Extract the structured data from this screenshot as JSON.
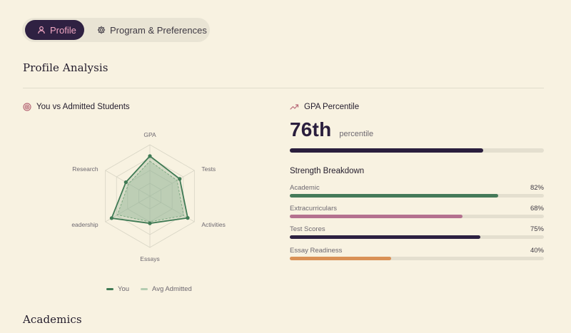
{
  "tabs": {
    "profile": "Profile",
    "program": "Program & Preferences"
  },
  "section_title": "Profile Analysis",
  "radar_card": {
    "title": "You vs Admitted Students",
    "axes": [
      "GPA",
      "Tests",
      "Activities",
      "Essays",
      "Leadership",
      "Research"
    ],
    "you": [
      0.78,
      0.67,
      0.85,
      0.53,
      0.86,
      0.54
    ],
    "avg_admitted": [
      0.68,
      0.61,
      0.76,
      0.5,
      0.73,
      0.48
    ],
    "legend": {
      "you": "You",
      "avg": "Avg Admitted"
    },
    "colors": {
      "you": "#3f7a54",
      "avg": "#b4cdb1"
    }
  },
  "gpa_card": {
    "title": "GPA Percentile",
    "value": "76th",
    "unit": "percentile",
    "progress": 0.76
  },
  "strength": {
    "title": "Strength Breakdown",
    "rows": [
      {
        "label": "Academic",
        "value": "82%",
        "pct": 0.82,
        "color": "#457a59"
      },
      {
        "label": "Extracurriculars",
        "value": "68%",
        "pct": 0.68,
        "color": "#b4718f"
      },
      {
        "label": "Test Scores",
        "value": "75%",
        "pct": 0.75,
        "color": "#2c2040"
      },
      {
        "label": "Essay Readiness",
        "value": "40%",
        "pct": 0.4,
        "color": "#d99156"
      }
    ]
  },
  "next_section": "Academics"
}
